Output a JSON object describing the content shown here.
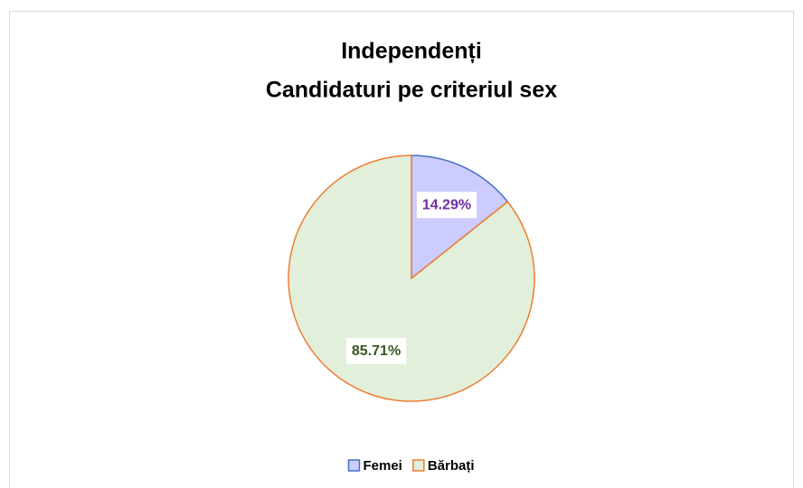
{
  "chart_data": {
    "type": "pie",
    "title": [
      "Independenți",
      "Candidaturi pe criteriul sex"
    ],
    "categories": [
      "Femei",
      "Bărbați"
    ],
    "values": [
      14.29,
      85.71
    ],
    "value_labels": [
      "14.29%",
      "85.71%"
    ],
    "colors": [
      "#ccccff",
      "#e2efda"
    ],
    "edge_colors": [
      "#4472c4",
      "#ed7d31"
    ],
    "label_colors": [
      "#7030a0",
      "#375623"
    ],
    "legend": "bottom"
  }
}
